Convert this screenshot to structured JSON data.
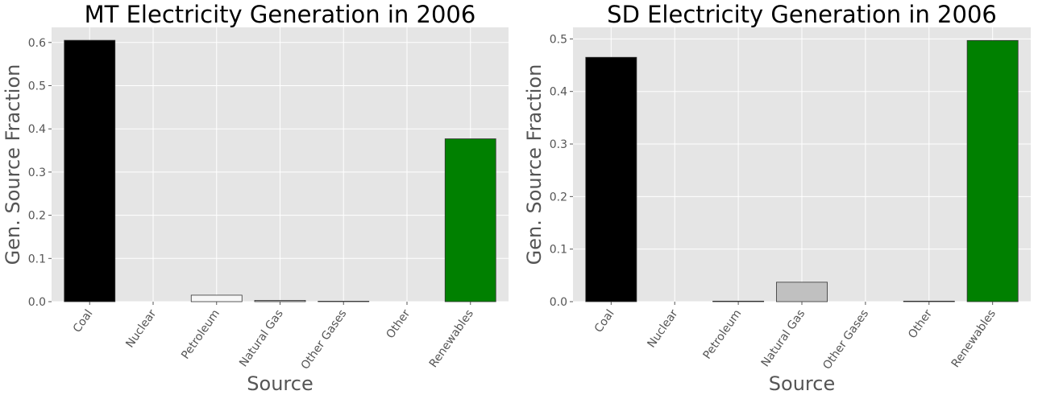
{
  "chart_data": [
    {
      "type": "bar",
      "title": "MT Electricity Generation in 2006",
      "xlabel": "Source",
      "ylabel": "Gen. Source Fraction",
      "categories": [
        "Coal",
        "Nuclear",
        "Petroleum",
        "Natural Gas",
        "Other Gases",
        "Other",
        "Renewables"
      ],
      "values": [
        0.605,
        0.0,
        0.015,
        0.003,
        0.001,
        0.0,
        0.377
      ],
      "colors": [
        "#000000",
        "#ffffff",
        "#f7f7f7",
        "#c0c0c0",
        "#d9d9d9",
        "#ffffff",
        "#008000"
      ],
      "ylim": [
        0,
        0.635
      ],
      "yticks": [
        0.0,
        0.1,
        0.2,
        0.3,
        0.4,
        0.5,
        0.6
      ],
      "ytick_labels": [
        "0.0",
        "0.1",
        "0.2",
        "0.3",
        "0.4",
        "0.5",
        "0.6"
      ],
      "grid": true
    },
    {
      "type": "bar",
      "title": "SD Electricity Generation in 2006",
      "xlabel": "Source",
      "ylabel": "Gen. Source Fraction",
      "categories": [
        "Coal",
        "Nuclear",
        "Petroleum",
        "Natural Gas",
        "Other Gases",
        "Other",
        "Renewables"
      ],
      "values": [
        0.465,
        0.0,
        0.001,
        0.037,
        0.0,
        0.001,
        0.497
      ],
      "colors": [
        "#000000",
        "#ffffff",
        "#f7f7f7",
        "#c0c0c0",
        "#d9d9d9",
        "#ffffff",
        "#008000"
      ],
      "ylim": [
        0,
        0.522
      ],
      "yticks": [
        0.0,
        0.1,
        0.2,
        0.3,
        0.4,
        0.5
      ],
      "ytick_labels": [
        "0.0",
        "0.1",
        "0.2",
        "0.3",
        "0.4",
        "0.5"
      ],
      "grid": true
    }
  ]
}
